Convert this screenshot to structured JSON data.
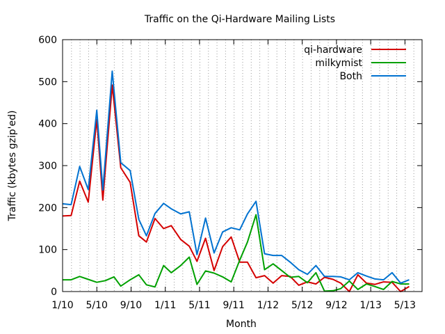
{
  "chart_data": {
    "type": "line",
    "title": "Traffic on the Qi-Hardware Mailing Lists",
    "xlabel": "Month",
    "ylabel": "Traffic (kbytes gzip'ed)",
    "ylim": [
      0,
      600
    ],
    "yticks": [
      0,
      100,
      200,
      300,
      400,
      500,
      600
    ],
    "xlim": [
      0,
      42
    ],
    "xticks": [
      {
        "pos": 0,
        "label": "1/10"
      },
      {
        "pos": 4,
        "label": "5/10"
      },
      {
        "pos": 8,
        "label": "9/10"
      },
      {
        "pos": 12,
        "label": "1/11"
      },
      {
        "pos": 16,
        "label": "5/11"
      },
      {
        "pos": 20,
        "label": "9/11"
      },
      {
        "pos": 24,
        "label": "1/12"
      },
      {
        "pos": 28,
        "label": "5/12"
      },
      {
        "pos": 32,
        "label": "9/12"
      },
      {
        "pos": 36,
        "label": "1/13"
      },
      {
        "pos": 40,
        "label": "5/13"
      }
    ],
    "grid": {
      "vertical_minor": true,
      "horizontal": false
    },
    "legend": "top-right",
    "series": [
      {
        "name": "qi-hardware",
        "color": "#d40000",
        "points": [
          [
            0,
            180
          ],
          [
            1,
            181
          ],
          [
            2,
            263
          ],
          [
            3,
            213
          ],
          [
            4,
            410
          ],
          [
            4.7,
            218
          ],
          [
            5.8,
            492
          ],
          [
            6.8,
            295
          ],
          [
            7.9,
            260
          ],
          [
            8.9,
            133
          ],
          [
            9.8,
            118
          ],
          [
            10.8,
            174
          ],
          [
            11.8,
            150
          ],
          [
            12.7,
            157
          ],
          [
            13.8,
            124
          ],
          [
            14.8,
            108
          ],
          [
            15.7,
            72
          ],
          [
            16.7,
            127
          ],
          [
            17.7,
            50
          ],
          [
            18.7,
            107
          ],
          [
            19.7,
            130
          ],
          [
            20.7,
            70
          ],
          [
            21.6,
            70
          ],
          [
            22.6,
            33
          ],
          [
            23.6,
            38
          ],
          [
            24.6,
            20
          ],
          [
            25.6,
            38
          ],
          [
            26.6,
            36
          ],
          [
            27.6,
            15
          ],
          [
            28.6,
            23
          ],
          [
            29.6,
            18
          ],
          [
            30.6,
            34
          ],
          [
            31.6,
            29
          ],
          [
            32.5,
            20
          ],
          [
            33.5,
            0
          ],
          [
            34.5,
            40
          ],
          [
            35.5,
            20
          ],
          [
            36.5,
            17
          ],
          [
            37.5,
            23
          ],
          [
            38.5,
            22
          ],
          [
            39.5,
            0
          ],
          [
            40.5,
            12
          ]
        ]
      },
      {
        "name": "milkymist",
        "color": "#00a000",
        "points": [
          [
            0,
            28
          ],
          [
            1,
            28
          ],
          [
            2,
            36
          ],
          [
            3,
            29
          ],
          [
            4,
            22
          ],
          [
            5,
            26
          ],
          [
            6,
            35
          ],
          [
            6.8,
            13
          ],
          [
            7.9,
            28
          ],
          [
            8.9,
            40
          ],
          [
            9.8,
            16
          ],
          [
            10.8,
            11
          ],
          [
            11.8,
            62
          ],
          [
            12.7,
            45
          ],
          [
            13.8,
            62
          ],
          [
            14.8,
            82
          ],
          [
            15.7,
            17
          ],
          [
            16.7,
            49
          ],
          [
            17.7,
            44
          ],
          [
            18.7,
            35
          ],
          [
            19.7,
            23
          ],
          [
            20.7,
            75
          ],
          [
            21.6,
            118
          ],
          [
            22.6,
            183
          ],
          [
            23.6,
            52
          ],
          [
            24.6,
            66
          ],
          [
            25.6,
            50
          ],
          [
            26.6,
            34
          ],
          [
            27.6,
            36
          ],
          [
            28.6,
            21
          ],
          [
            29.6,
            45
          ],
          [
            30.6,
            1
          ],
          [
            31.6,
            2
          ],
          [
            32.5,
            7
          ],
          [
            33.5,
            25
          ],
          [
            34.5,
            5
          ],
          [
            35.5,
            18
          ],
          [
            36.5,
            12
          ],
          [
            37.5,
            5
          ],
          [
            38.5,
            24
          ],
          [
            39.5,
            18
          ],
          [
            40.5,
            18
          ]
        ]
      },
      {
        "name": "Both",
        "color": "#0072d0",
        "points": [
          [
            0,
            209
          ],
          [
            1,
            207
          ],
          [
            2,
            298
          ],
          [
            3,
            243
          ],
          [
            4,
            432
          ],
          [
            4.7,
            242
          ],
          [
            5.8,
            525
          ],
          [
            6.8,
            307
          ],
          [
            7.9,
            288
          ],
          [
            8.9,
            172
          ],
          [
            9.8,
            133
          ],
          [
            10.8,
            186
          ],
          [
            11.8,
            210
          ],
          [
            12.7,
            197
          ],
          [
            13.8,
            185
          ],
          [
            14.8,
            190
          ],
          [
            15.7,
            88
          ],
          [
            16.7,
            175
          ],
          [
            17.7,
            92
          ],
          [
            18.7,
            142
          ],
          [
            19.7,
            152
          ],
          [
            20.7,
            147
          ],
          [
            21.6,
            185
          ],
          [
            22.6,
            215
          ],
          [
            23.6,
            90
          ],
          [
            24.6,
            86
          ],
          [
            25.6,
            86
          ],
          [
            26.6,
            70
          ],
          [
            27.6,
            52
          ],
          [
            28.6,
            41
          ],
          [
            29.6,
            62
          ],
          [
            30.6,
            36
          ],
          [
            31.6,
            36
          ],
          [
            32.5,
            35
          ],
          [
            33.5,
            28
          ],
          [
            34.5,
            45
          ],
          [
            35.5,
            37
          ],
          [
            36.5,
            30
          ],
          [
            37.5,
            28
          ],
          [
            38.5,
            45
          ],
          [
            39.5,
            20
          ],
          [
            40.5,
            28
          ]
        ]
      }
    ]
  }
}
